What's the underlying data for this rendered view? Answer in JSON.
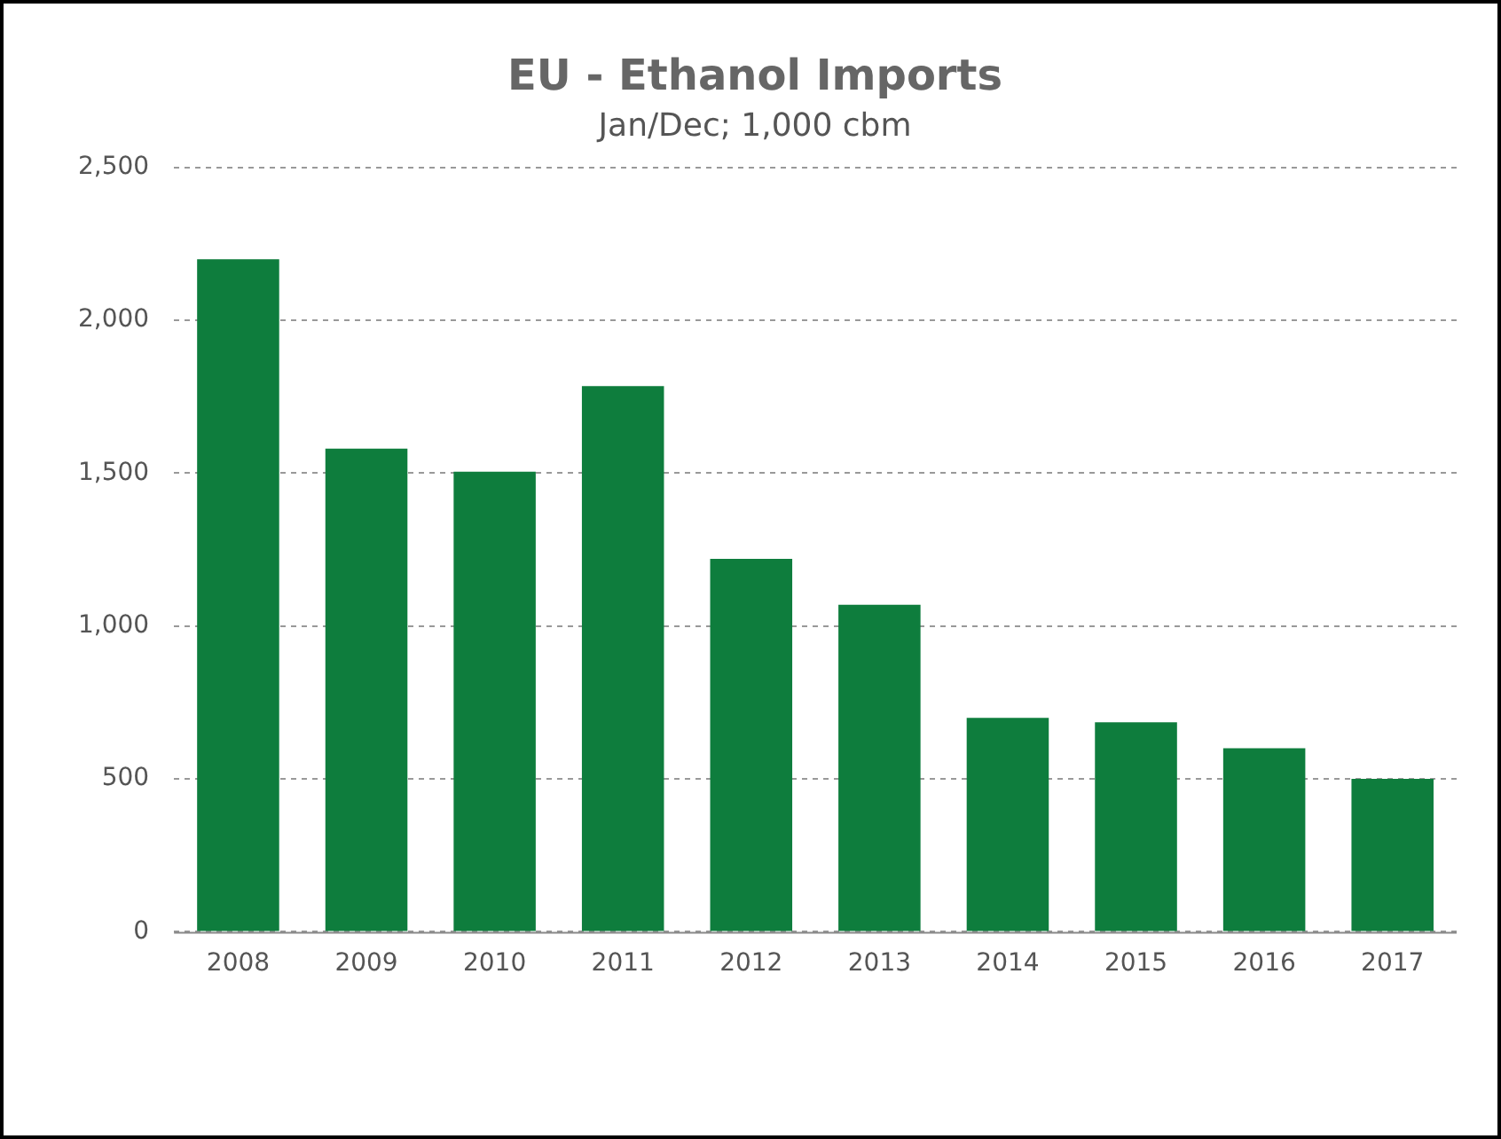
{
  "chart_data": {
    "type": "bar",
    "title": "EU - Ethanol Imports",
    "subtitle": "Jan/Dec; 1,000 cbm",
    "categories": [
      "2008",
      "2009",
      "2010",
      "2011",
      "2012",
      "2013",
      "2014",
      "2015",
      "2016",
      "2017"
    ],
    "values": [
      2200,
      1580,
      1505,
      1785,
      1220,
      1070,
      700,
      685,
      600,
      500
    ],
    "color": "#0e7d3d",
    "ylim": [
      0,
      2500
    ],
    "yticks": [
      0,
      {
        "value": 500,
        "label": "500"
      },
      {
        "value": 1000,
        "label": "1,000"
      },
      {
        "value": 1500,
        "label": "1,500"
      },
      {
        "value": 2000,
        "label": "2,000"
      },
      {
        "value": 2500,
        "label": "2,500"
      }
    ],
    "grid": "y",
    "legend": false
  }
}
